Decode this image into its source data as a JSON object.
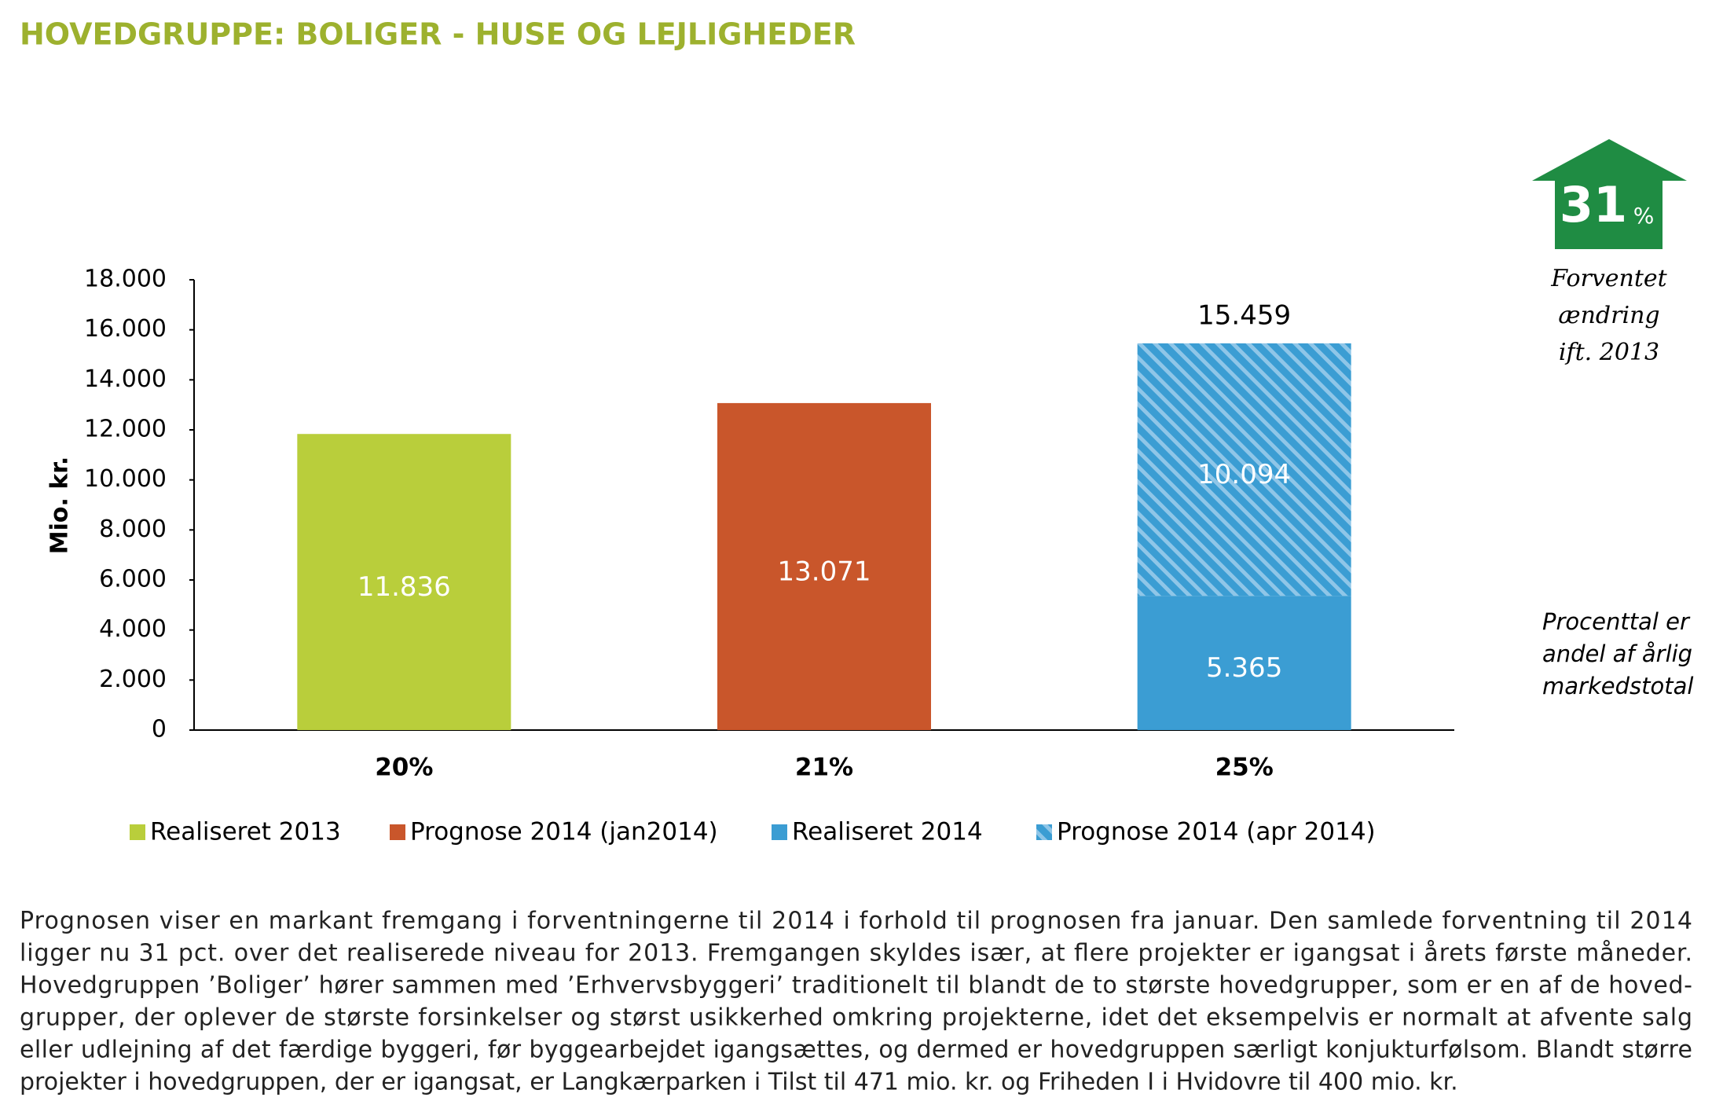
{
  "chart_data": {
    "type": "stacked_bar",
    "title": "HOVEDGRUPPE: BOLIGER - HUSE OG LEJLIGHEDER",
    "ylabel": "Mio. kr.",
    "categories": [
      "20%",
      "21%",
      "25%"
    ],
    "series": [
      {
        "name": "Realiseret 2013",
        "color": "#b9ce3b",
        "values": [
          11836,
          null,
          null
        ],
        "value_labels": [
          "11.836",
          null,
          null
        ]
      },
      {
        "name": "Prognose 2014 (jan2014)",
        "color": "#c9562b",
        "values": [
          null,
          13071,
          null
        ],
        "value_labels": [
          null,
          "13.071",
          null
        ]
      },
      {
        "name": "Realiseret 2014",
        "color": "#3b9dd3",
        "values": [
          null,
          null,
          5365
        ],
        "value_labels": [
          null,
          null,
          "5.365"
        ]
      },
      {
        "name": "Prognose 2014 (apr 2014)",
        "color": "#3b9dd3",
        "pattern": "hatch",
        "values": [
          null,
          null,
          10094
        ],
        "value_labels": [
          null,
          null,
          "10.094"
        ]
      }
    ],
    "total": {
      "value": 15459,
      "label": "15.459"
    },
    "ylim": [
      0,
      18000
    ],
    "yticks": [
      0,
      {
        "value": 2000,
        "label": "2.000"
      },
      {
        "value": 4000,
        "label": "4.000"
      },
      {
        "value": 6000,
        "label": "6.000"
      },
      {
        "value": 8000,
        "label": "8.000"
      },
      {
        "value": 10000,
        "label": "10.000"
      },
      {
        "value": 12000,
        "label": "12.000"
      },
      {
        "value": 14000,
        "label": "14.000"
      },
      {
        "value": 16000,
        "label": "16.000"
      },
      {
        "value": 18000,
        "label": "18.000"
      }
    ],
    "grid": false,
    "legend": "bottom",
    "badge": {
      "number": "31",
      "unit": "%",
      "caption": [
        "Forventet",
        "ændring",
        "ift. 2013"
      ],
      "color": "#1f8c43"
    },
    "note": [
      "Procenttal er",
      "andel af årlig",
      "markedstotal"
    ]
  },
  "body": [
    "Prognosen viser en markant fremgang i forventningerne til 2014 i forhold til prognosen fra januar. Den samlede forventning til 2014",
    "ligger nu 31 pct. over det realiserede niveau for 2013. Fremgangen skyldes især, at flere projekter er igangsat i årets første måneder.",
    "Hovedgruppen ’Boliger’ hører sammen med ’Erhvervsbyggeri’ traditionelt til blandt de to største hovedgrupper, som er en af de hoved-",
    "grupper, der oplever de største forsinkelser og størst usikkerhed omkring projekterne, idet det eksempelvis er normalt at afvente salg",
    "eller udlejning af det færdige byggeri, før byggearbejdet igangsættes, og dermed er hovedgruppen særligt konjukturfølsom. Blandt større",
    "projekter i hovedgruppen, der er igangsat, er Langkærparken i Tilst til 471 mio. kr. og Friheden I i Hvidovre til 400 mio. kr."
  ]
}
